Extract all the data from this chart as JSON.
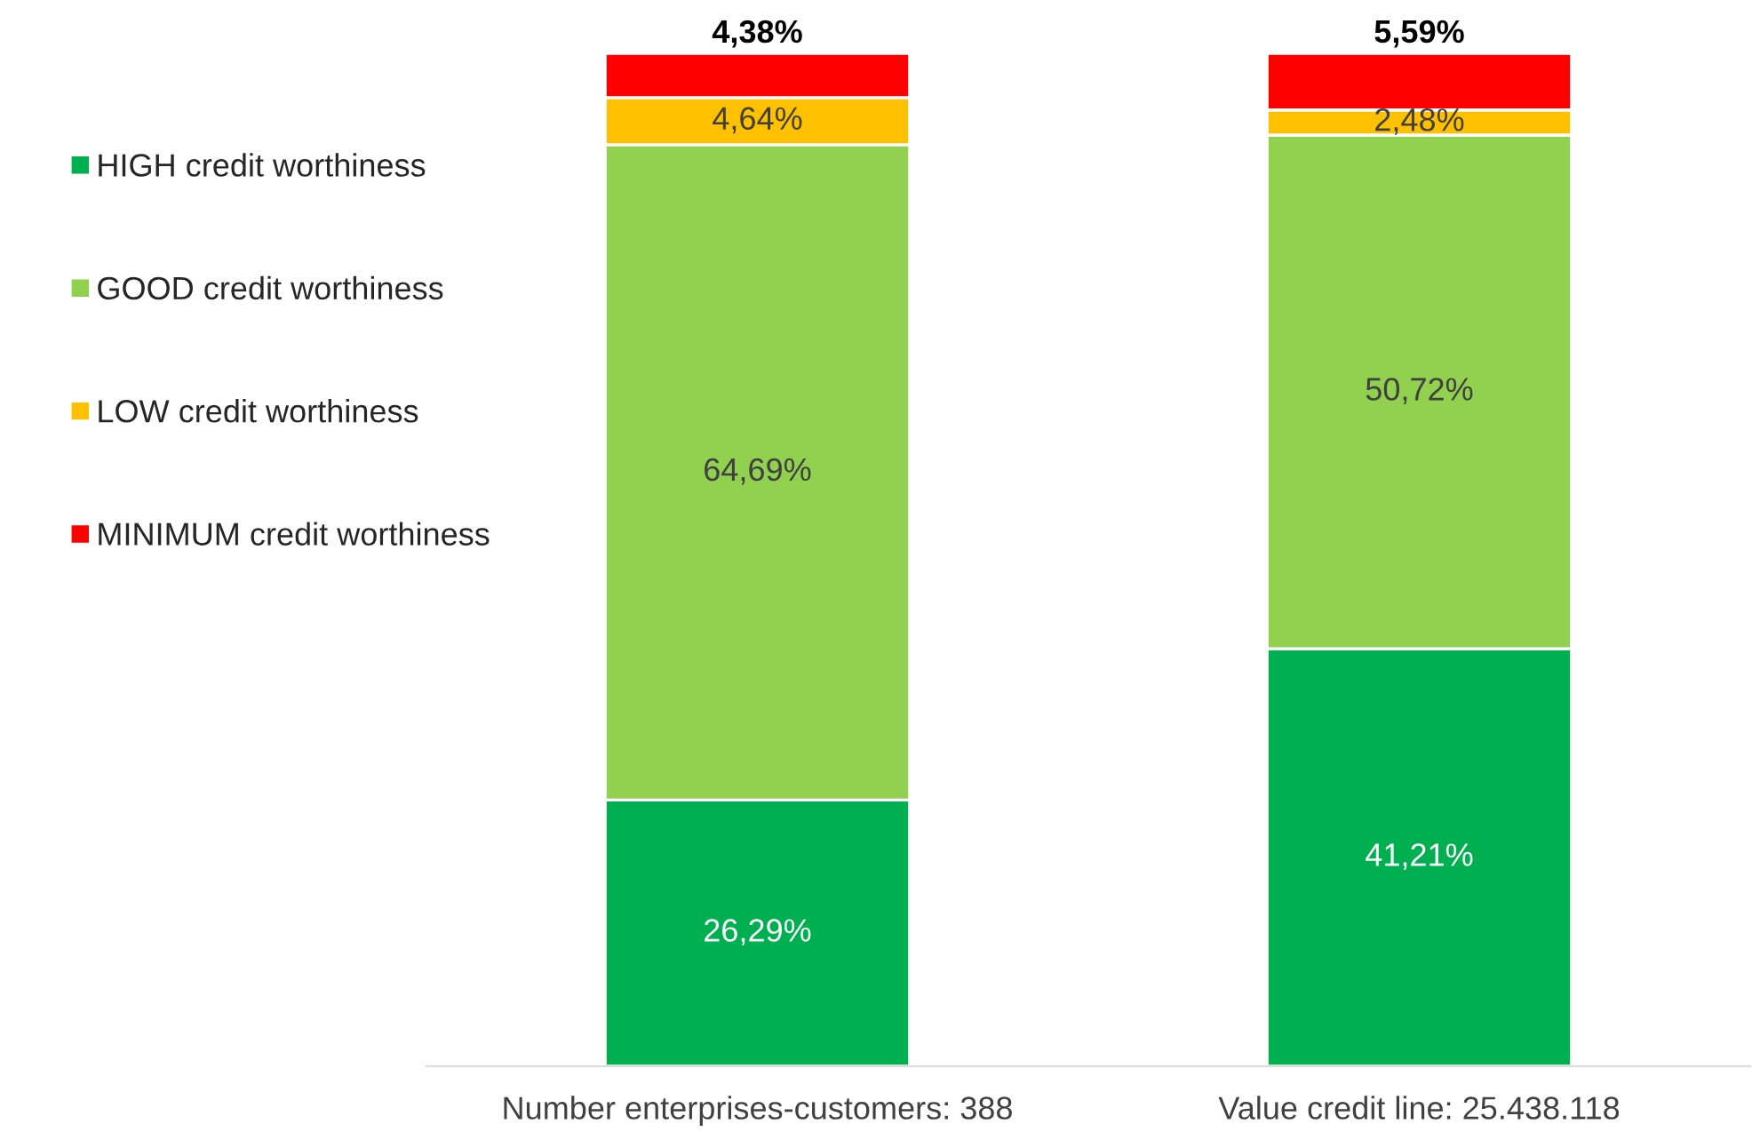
{
  "chart_data": {
    "type": "bar",
    "stacked": true,
    "categories": [
      "Number enterprises-customers: 388",
      "Value credit line: 25.438.118"
    ],
    "series": [
      {
        "name": "HIGH credit worthiness",
        "color": "#00b050",
        "values": [
          26.29,
          41.21
        ],
        "value_labels": [
          "26,29%",
          "41,21%"
        ]
      },
      {
        "name": "GOOD credit worthiness",
        "color": "#92d050",
        "values": [
          64.69,
          50.72
        ],
        "value_labels": [
          "64,69%",
          "50,72%"
        ]
      },
      {
        "name": "LOW credit worthiness",
        "color": "#ffc000",
        "values": [
          4.64,
          2.48
        ],
        "value_labels": [
          "4,64%",
          "2,48%"
        ]
      },
      {
        "name": "MINIMUM credit worthiness",
        "color": "#ff0000",
        "values": [
          4.38,
          5.59
        ],
        "value_labels": [
          "4,38%",
          "5,59%"
        ]
      }
    ],
    "ylim": [
      0,
      100
    ],
    "tick_labels": "x",
    "legend": "left",
    "grid": false
  }
}
